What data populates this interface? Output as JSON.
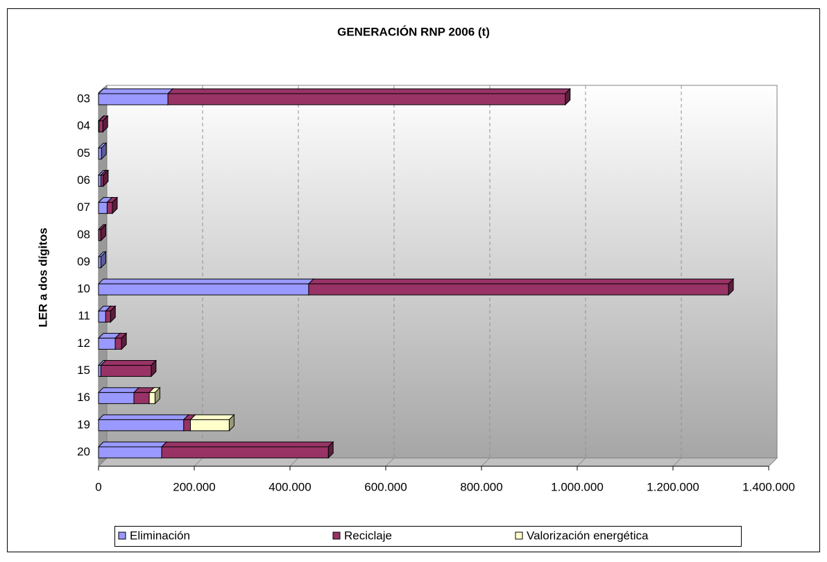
{
  "chart_data": {
    "type": "bar",
    "stacked": true,
    "orientation": "horizontal",
    "title": "GENERACIÓN RNP 2006 (t)",
    "y_label": "LER a dos dígitos",
    "categories": [
      "03",
      "04",
      "05",
      "06",
      "07",
      "08",
      "09",
      "10",
      "11",
      "12",
      "15",
      "16",
      "19",
      "20"
    ],
    "series": [
      {
        "name": "Eliminación",
        "color": "#9999ff",
        "values": [
          145000,
          1000,
          6000,
          5000,
          18000,
          0,
          5000,
          439000,
          15000,
          35000,
          5000,
          74000,
          178000,
          132000
        ]
      },
      {
        "name": "Reciclaje",
        "color": "#993366",
        "values": [
          830000,
          8000,
          0,
          5000,
          11000,
          5000,
          0,
          877000,
          10000,
          13000,
          105000,
          32000,
          14000,
          348000
        ]
      },
      {
        "name": "Valorización energética",
        "color": "#ffffcc",
        "values": [
          0,
          0,
          0,
          0,
          0,
          0,
          0,
          0,
          0,
          0,
          0,
          12000,
          81000,
          0
        ]
      }
    ],
    "xlim": [
      0,
      1400000
    ],
    "xticks": [
      0,
      {
        "value": 200000,
        "label": "200.000"
      },
      {
        "value": 400000,
        "label": "400.000"
      },
      {
        "value": 600000,
        "label": "600.000"
      },
      {
        "value": 800000,
        "label": "800.000"
      },
      {
        "value": 1000000,
        "label": "1.000.000"
      },
      {
        "value": 1200000,
        "label": "1.200.000"
      },
      {
        "value": 1400000,
        "label": "1.400.000"
      }
    ],
    "grid": true,
    "legend": "bottom"
  }
}
